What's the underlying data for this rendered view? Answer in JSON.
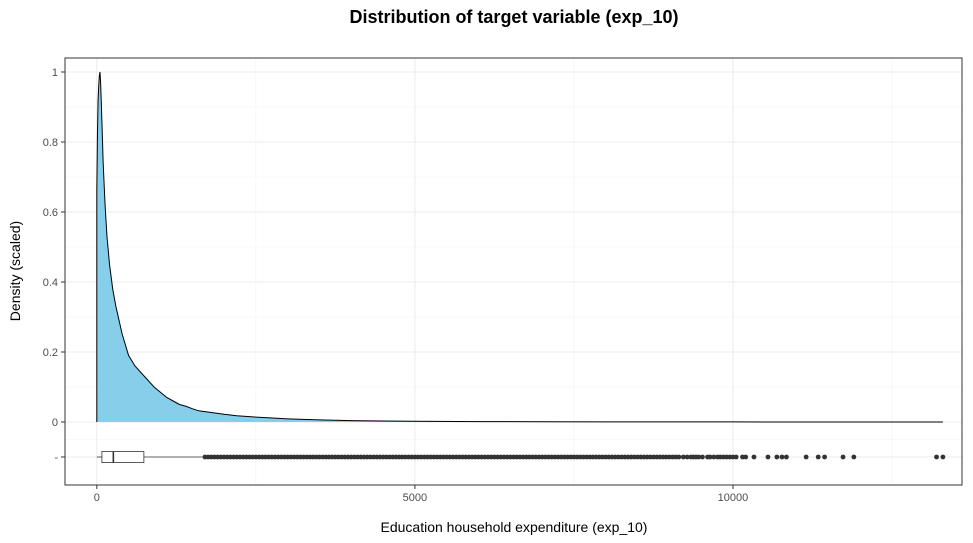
{
  "chart_data": {
    "type": "area",
    "title": "Distribution of target variable (exp_10)",
    "xlabel": "Education household expenditure (exp_10)",
    "ylabel": "Density (scaled)",
    "xlim": [
      -500,
      13600
    ],
    "ylim": [
      -0.18,
      1.04
    ],
    "x_ticks": [
      0,
      5000,
      10000
    ],
    "x_tick_labels": [
      "0",
      "5000",
      "10000"
    ],
    "y_ticks": [
      1,
      0.8,
      0.6,
      0.4,
      0.2,
      0,
      -0.1
    ],
    "y_tick_labels": [
      "1",
      "0.8",
      "0.6",
      "0.4",
      "0.2",
      "0",
      "-"
    ],
    "grid": true,
    "fill_color": "#87ceeb",
    "density": {
      "x": [
        0,
        10,
        20,
        30,
        40,
        50,
        60,
        80,
        100,
        130,
        160,
        200,
        250,
        300,
        350,
        400,
        450,
        500,
        600,
        700,
        800,
        900,
        1000,
        1100,
        1200,
        1300,
        1400,
        1500,
        1600,
        1800,
        2000,
        2200,
        2500,
        2800,
        3000,
        3500,
        4000,
        4500,
        5000,
        6000,
        7000,
        8000,
        9000,
        10000,
        11000,
        12000,
        13000,
        13300
      ],
      "y": [
        0.66,
        0.82,
        0.92,
        0.96,
        0.99,
        1.0,
        0.97,
        0.86,
        0.74,
        0.62,
        0.53,
        0.45,
        0.38,
        0.33,
        0.29,
        0.25,
        0.22,
        0.19,
        0.16,
        0.14,
        0.12,
        0.1,
        0.085,
        0.07,
        0.06,
        0.05,
        0.045,
        0.038,
        0.032,
        0.027,
        0.022,
        0.018,
        0.014,
        0.011,
        0.009,
        0.006,
        0.004,
        0.003,
        0.002,
        0.001,
        0.0008,
        0.0005,
        0.0003,
        0.0002,
        0.0001,
        0.0001,
        0.0,
        0.0
      ]
    },
    "boxplot": {
      "y": -0.1,
      "min": 0,
      "q1": 80,
      "median": 260,
      "q3": 740,
      "whisker_high": 1700,
      "max": 13300,
      "outliers": [
        1700,
        1750,
        1800,
        1850,
        1900,
        1950,
        2000,
        2050,
        2100,
        2150,
        2200,
        2250,
        2300,
        2350,
        2400,
        2450,
        2500,
        2550,
        2600,
        2650,
        2700,
        2750,
        2800,
        2850,
        2900,
        2950,
        3000,
        3050,
        3100,
        3150,
        3200,
        3250,
        3300,
        3350,
        3400,
        3450,
        3500,
        3550,
        3600,
        3650,
        3700,
        3750,
        3800,
        3850,
        3900,
        3950,
        4000,
        4050,
        4100,
        4150,
        4200,
        4250,
        4300,
        4350,
        4400,
        4450,
        4500,
        4550,
        4600,
        4650,
        4700,
        4750,
        4800,
        4850,
        4900,
        4950,
        5000,
        5050,
        5100,
        5150,
        5200,
        5250,
        5300,
        5350,
        5400,
        5450,
        5500,
        5550,
        5600,
        5650,
        5700,
        5750,
        5800,
        5850,
        5900,
        5950,
        6000,
        6050,
        6100,
        6150,
        6200,
        6250,
        6300,
        6350,
        6400,
        6450,
        6500,
        6550,
        6600,
        6650,
        6700,
        6750,
        6800,
        6850,
        6900,
        6950,
        7000,
        7050,
        7100,
        7150,
        7200,
        7250,
        7300,
        7350,
        7400,
        7450,
        7500,
        7550,
        7600,
        7650,
        7700,
        7750,
        7800,
        7850,
        7900,
        7950,
        8000,
        8050,
        8100,
        8150,
        8200,
        8250,
        8300,
        8350,
        8400,
        8450,
        8500,
        8550,
        8600,
        8650,
        8700,
        8750,
        8800,
        8850,
        8900,
        8950,
        9000,
        9050,
        9100,
        9150,
        9220,
        9280,
        9340,
        9380,
        9420,
        9460,
        9520,
        9600,
        9640,
        9700,
        9760,
        9800,
        9850,
        9900,
        9950,
        10000,
        10050,
        10150,
        10200,
        10330,
        10550,
        10690,
        10770,
        10840,
        11150,
        11340,
        11440,
        11730,
        11900,
        13200,
        13300
      ]
    }
  }
}
